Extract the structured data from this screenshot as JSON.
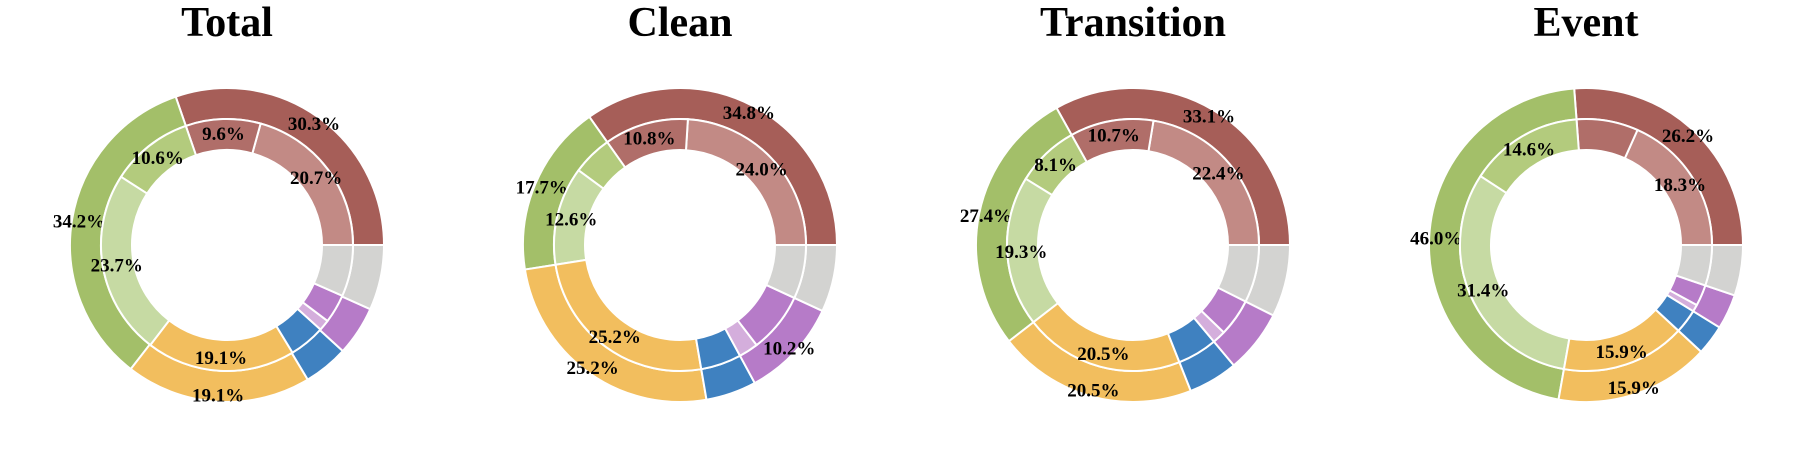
{
  "colors": {
    "red_outer": "#A65E58",
    "red_inner_a": "#C28A85",
    "red_inner_b": "#B06E69",
    "green_outer": "#A3BF69",
    "green_inner_a": "#B3CB7D",
    "green_inner_b": "#C6DAA3",
    "yellow_outer": "#F2BE5E",
    "yellow_inner": "#F2BE5E",
    "blue_outer": "#3F81C0",
    "blue_inner": "#3F81C0",
    "purple_outer": "#B67BC8",
    "purple_inner_a": "#D4AEDC",
    "purple_inner_b": "#B67BC8",
    "gray_outer": "#D3D3D1",
    "gray_inner": "#D3D3D1",
    "edge": "#ffffff"
  },
  "chart_data": [
    {
      "type": "donut",
      "title": "Total",
      "outer": [
        {
          "color_key": "red_outer",
          "value": 30.3,
          "label": "30.3%"
        },
        {
          "color_key": "green_outer",
          "value": 34.2,
          "label": "34.2%"
        },
        {
          "color_key": "yellow_outer",
          "value": 19.1,
          "label": "19.1%"
        },
        {
          "color_key": "blue_outer",
          "value": 4.6,
          "label": ""
        },
        {
          "color_key": "purple_outer",
          "value": 5.1,
          "label": ""
        },
        {
          "color_key": "gray_outer",
          "value": 6.7,
          "label": ""
        }
      ],
      "inner": [
        {
          "color_key": "red_inner_a",
          "value": 20.7,
          "label": "20.7%"
        },
        {
          "color_key": "red_inner_b",
          "value": 9.6,
          "label": "9.6%"
        },
        {
          "color_key": "green_inner_a",
          "value": 10.6,
          "label": "10.6%"
        },
        {
          "color_key": "green_inner_b",
          "value": 23.7,
          "label": "23.7%"
        },
        {
          "color_key": "yellow_inner",
          "value": 19.1,
          "label": "19.1%"
        },
        {
          "color_key": "blue_inner",
          "value": 4.6,
          "label": ""
        },
        {
          "color_key": "purple_inner_a",
          "value": 1.4,
          "label": ""
        },
        {
          "color_key": "purple_inner_b",
          "value": 3.7,
          "label": ""
        },
        {
          "color_key": "gray_inner",
          "value": 6.6,
          "label": ""
        }
      ]
    },
    {
      "type": "donut",
      "title": "Clean",
      "outer": [
        {
          "color_key": "red_outer",
          "value": 34.8,
          "label": "34.8%"
        },
        {
          "color_key": "green_outer",
          "value": 17.7,
          "label": "17.7%"
        },
        {
          "color_key": "yellow_outer",
          "value": 25.2,
          "label": "25.2%"
        },
        {
          "color_key": "blue_outer",
          "value": 5.2,
          "label": ""
        },
        {
          "color_key": "purple_outer",
          "value": 10.2,
          "label": "10.2%"
        },
        {
          "color_key": "gray_outer",
          "value": 6.9,
          "label": ""
        }
      ],
      "inner": [
        {
          "color_key": "red_inner_a",
          "value": 24.0,
          "label": "24.0%"
        },
        {
          "color_key": "red_inner_b",
          "value": 10.8,
          "label": "10.8%"
        },
        {
          "color_key": "green_inner_a",
          "value": 5.1,
          "label": ""
        },
        {
          "color_key": "green_inner_b",
          "value": 12.6,
          "label": "12.6%"
        },
        {
          "color_key": "yellow_inner",
          "value": 25.2,
          "label": "25.2%"
        },
        {
          "color_key": "blue_inner",
          "value": 5.2,
          "label": ""
        },
        {
          "color_key": "purple_inner_a",
          "value": 2.5,
          "label": ""
        },
        {
          "color_key": "purple_inner_b",
          "value": 7.7,
          "label": ""
        },
        {
          "color_key": "gray_inner",
          "value": 6.9,
          "label": ""
        }
      ]
    },
    {
      "type": "donut",
      "title": "Transition",
      "outer": [
        {
          "color_key": "red_outer",
          "value": 33.1,
          "label": "33.1%"
        },
        {
          "color_key": "green_outer",
          "value": 27.4,
          "label": "27.4%"
        },
        {
          "color_key": "yellow_outer",
          "value": 20.5,
          "label": "20.5%"
        },
        {
          "color_key": "blue_outer",
          "value": 5.1,
          "label": ""
        },
        {
          "color_key": "purple_outer",
          "value": 6.5,
          "label": ""
        },
        {
          "color_key": "gray_outer",
          "value": 7.4,
          "label": ""
        }
      ],
      "inner": [
        {
          "color_key": "red_inner_a",
          "value": 22.4,
          "label": "22.4%"
        },
        {
          "color_key": "red_inner_b",
          "value": 10.7,
          "label": "10.7%"
        },
        {
          "color_key": "green_inner_a",
          "value": 8.1,
          "label": "8.1%"
        },
        {
          "color_key": "green_inner_b",
          "value": 19.3,
          "label": "19.3%"
        },
        {
          "color_key": "yellow_inner",
          "value": 20.5,
          "label": "20.5%"
        },
        {
          "color_key": "blue_inner",
          "value": 5.1,
          "label": ""
        },
        {
          "color_key": "purple_inner_a",
          "value": 1.7,
          "label": ""
        },
        {
          "color_key": "purple_inner_b",
          "value": 4.8,
          "label": ""
        },
        {
          "color_key": "gray_inner",
          "value": 7.4,
          "label": ""
        }
      ]
    },
    {
      "type": "donut",
      "title": "Event",
      "outer": [
        {
          "color_key": "red_outer",
          "value": 26.2,
          "label": "26.2%"
        },
        {
          "color_key": "green_outer",
          "value": 46.0,
          "label": "46.0%"
        },
        {
          "color_key": "yellow_outer",
          "value": 15.9,
          "label": "15.9%"
        },
        {
          "color_key": "blue_outer",
          "value": 3.1,
          "label": ""
        },
        {
          "color_key": "purple_outer",
          "value": 3.6,
          "label": ""
        },
        {
          "color_key": "gray_outer",
          "value": 5.2,
          "label": ""
        }
      ],
      "inner": [
        {
          "color_key": "red_inner_a",
          "value": 18.3,
          "label": "18.3%"
        },
        {
          "color_key": "red_inner_b",
          "value": 7.9,
          "label": ""
        },
        {
          "color_key": "green_inner_a",
          "value": 14.6,
          "label": "14.6%"
        },
        {
          "color_key": "green_inner_b",
          "value": 31.4,
          "label": "31.4%"
        },
        {
          "color_key": "yellow_inner",
          "value": 15.9,
          "label": "15.9%"
        },
        {
          "color_key": "blue_inner",
          "value": 3.1,
          "label": ""
        },
        {
          "color_key": "purple_inner_a",
          "value": 0.9,
          "label": ""
        },
        {
          "color_key": "purple_inner_b",
          "value": 2.7,
          "label": ""
        },
        {
          "color_key": "gray_inner",
          "value": 5.2,
          "label": ""
        }
      ]
    }
  ]
}
